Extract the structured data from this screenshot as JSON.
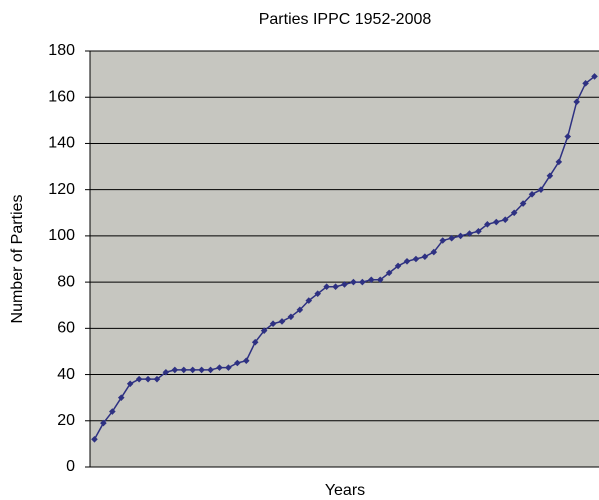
{
  "chart_data": {
    "type": "line",
    "title": "Parties IPPC 1952-2008",
    "x_label": "Years",
    "y_label": "Number of Parties",
    "categories": [
      null,
      null,
      null,
      null,
      null,
      null,
      null,
      null,
      null,
      null,
      null,
      null,
      null,
      null,
      null,
      null,
      null,
      null,
      null,
      null,
      null,
      null,
      null,
      null,
      null,
      null,
      null,
      null,
      null,
      null,
      null,
      null,
      null,
      null,
      null,
      null,
      null,
      null,
      null,
      null,
      null,
      null,
      null,
      null,
      null,
      null,
      null,
      null,
      null,
      null,
      null,
      null,
      null,
      null,
      null,
      null,
      null
    ],
    "series": [
      {
        "name": "Parties",
        "color": "#2e3182",
        "values": [
          12,
          19,
          24,
          30,
          36,
          38,
          38,
          38,
          41,
          42,
          42,
          42,
          42,
          42,
          43,
          43,
          45,
          46,
          54,
          59,
          62,
          63,
          65,
          68,
          72,
          75,
          78,
          78,
          79,
          80,
          80,
          81,
          81,
          84,
          87,
          89,
          90,
          91,
          93,
          98,
          99,
          100,
          101,
          102,
          105,
          106,
          107,
          110,
          114,
          118,
          120,
          126,
          132,
          143,
          158,
          166,
          169
        ]
      }
    ],
    "ylim": [
      0,
      180
    ],
    "yticks": [
      0,
      20,
      40,
      60,
      80,
      100,
      120,
      140,
      160,
      180
    ],
    "grid": true
  }
}
